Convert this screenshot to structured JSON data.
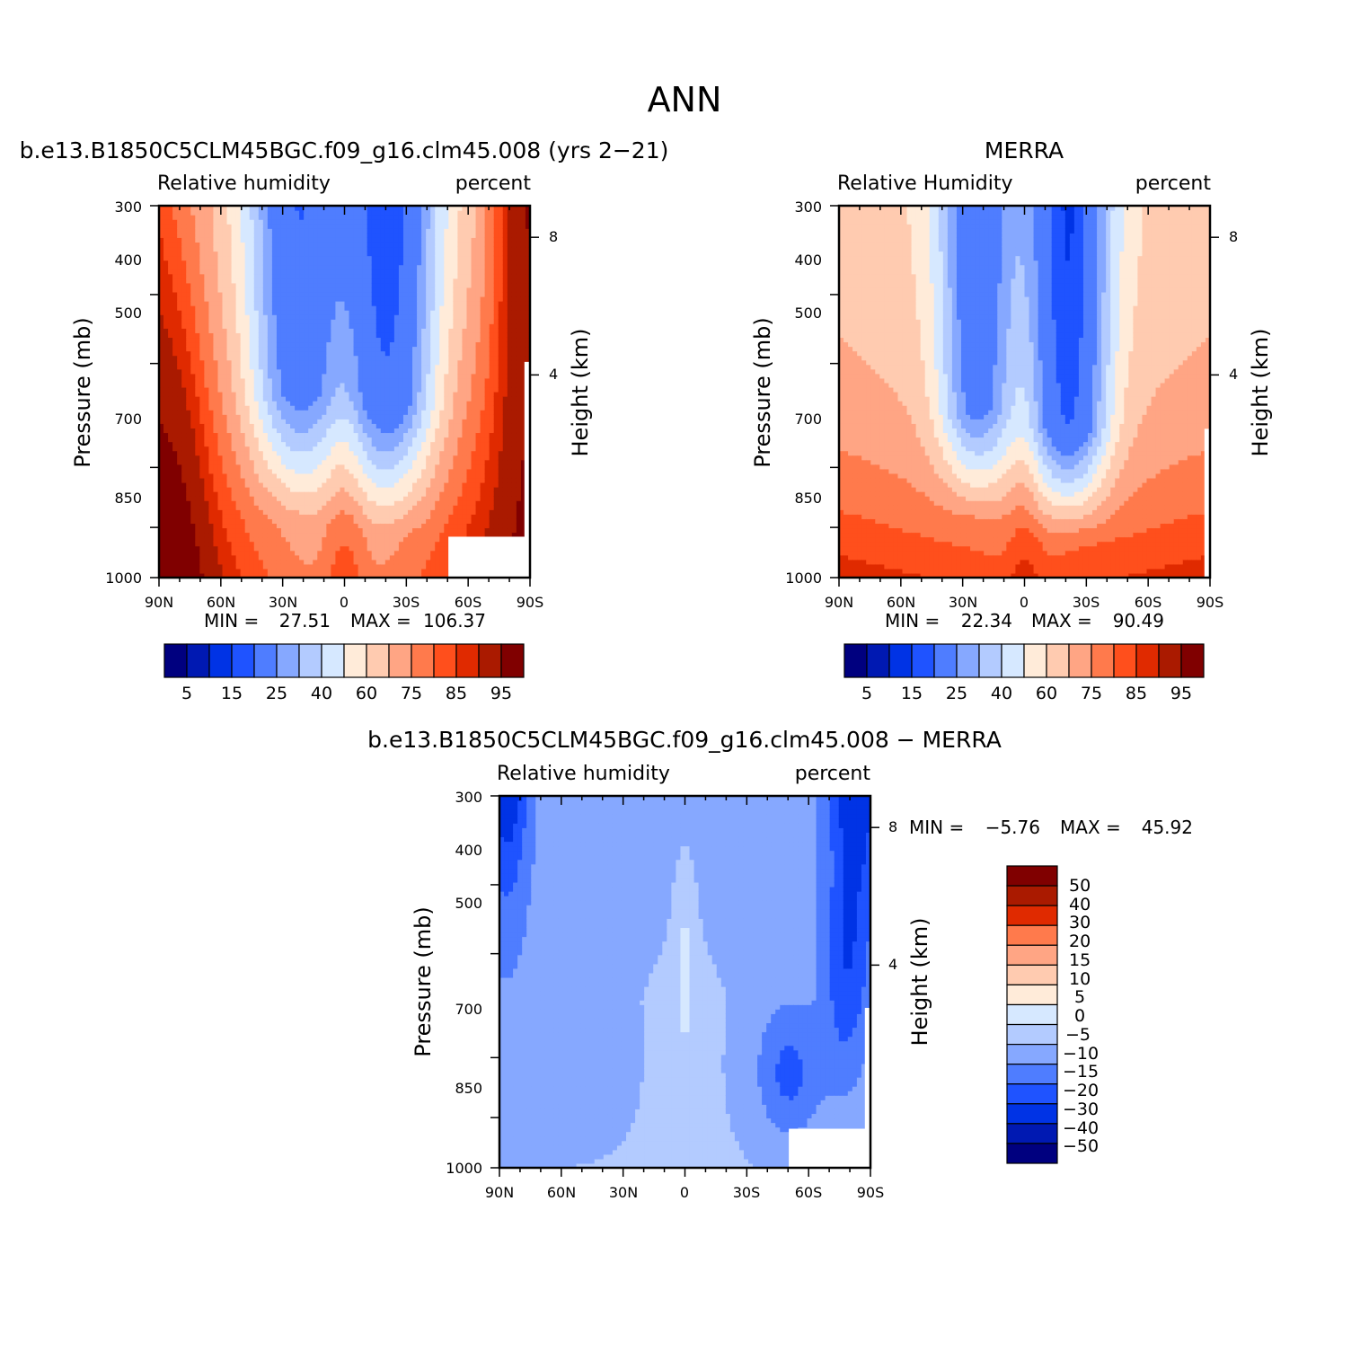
{
  "figure": {
    "title": "ANN"
  },
  "palette": {
    "model": [
      "#00007f",
      "#0019b2",
      "#0033e5",
      "#1f53ff",
      "#4f7dff",
      "#86a8ff",
      "#b3cbff",
      "#d6e8ff",
      "#ffebd9",
      "#ffcbb0",
      "#ffa584",
      "#ff7a4c",
      "#ff4f1c",
      "#e02a00",
      "#aa1a00",
      "#800000"
    ],
    "diff": [
      "#800000",
      "#aa1a00",
      "#e02a00",
      "#ff7a4c",
      "#ffa584",
      "#ffcbb0",
      "#ffebd9",
      "#d6e8ff",
      "#b3cbff",
      "#86a8ff",
      "#4f7dff",
      "#1f53ff",
      "#0033e5",
      "#0019b2",
      "#00007f"
    ]
  },
  "chart_data": [
    {
      "type": "heatmap",
      "id": "model",
      "title": "b.e13.B1850C5CLM45BGC.f09_g16.clm45.008 (yrs 2−21)",
      "left_label": "Relative humidity",
      "right_label": "percent",
      "ylabel": "Pressure (mb)",
      "y2label": "Height (km)",
      "x_ticks": [
        "90N",
        "60N",
        "30N",
        "0",
        "30S",
        "60S",
        "90S"
      ],
      "y_ticks": [
        "300",
        "400",
        "500",
        "700",
        "850",
        "1000"
      ],
      "y2_ticks": [
        "8",
        "4"
      ],
      "min_label": "MIN =",
      "min_value": "27.51",
      "max_label": "MAX =",
      "max_value": "106.37",
      "colorbar_labels": [
        "5",
        "15",
        "25",
        "40",
        "60",
        "75",
        "85",
        "95"
      ]
    },
    {
      "type": "heatmap",
      "id": "merra",
      "title": "MERRA",
      "left_label": "Relative Humidity",
      "right_label": "percent",
      "ylabel": "Pressure (mb)",
      "y2label": "Height (km)",
      "x_ticks": [
        "90N",
        "60N",
        "30N",
        "0",
        "30S",
        "60S",
        "90S"
      ],
      "y_ticks": [
        "300",
        "400",
        "500",
        "700",
        "850",
        "1000"
      ],
      "y2_ticks": [
        "8",
        "4"
      ],
      "min_label": "MIN =",
      "min_value": "22.34",
      "max_label": "MAX =",
      "max_value": "90.49",
      "colorbar_labels": [
        "5",
        "15",
        "25",
        "40",
        "60",
        "75",
        "85",
        "95"
      ]
    },
    {
      "type": "heatmap",
      "id": "diff",
      "title": "b.e13.B1850C5CLM45BGC.f09_g16.clm45.008 − MERRA",
      "left_label": "Relative humidity",
      "right_label": "percent",
      "ylabel": "Pressure (mb)",
      "y2label": "Height (km)",
      "x_ticks": [
        "90N",
        "60N",
        "30N",
        "0",
        "30S",
        "60S",
        "90S"
      ],
      "y_ticks": [
        "300",
        "400",
        "500",
        "700",
        "850",
        "1000"
      ],
      "y2_ticks": [
        "8",
        "4"
      ],
      "min_label": "MIN =",
      "min_value": "−5.76",
      "max_label": "MAX =",
      "max_value": "45.92",
      "colorbar_labels": [
        "50",
        "40",
        "30",
        "20",
        "15",
        "10",
        "5",
        "0",
        "−5",
        "−10",
        "−15",
        "−20",
        "−30",
        "−40",
        "−50"
      ]
    }
  ]
}
